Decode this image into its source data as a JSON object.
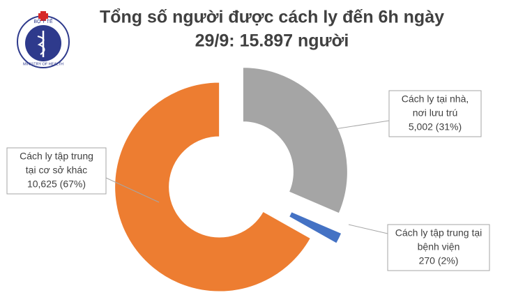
{
  "logo": {
    "top": "BỘ Y TẾ",
    "bottom": "MINISTRY OF HEALTH"
  },
  "chart_data": {
    "type": "donut",
    "title": [
      "Tổng số người được cách ly đến 6h ngày",
      "29/9: 15.897 người"
    ],
    "categories": [
      [
        "Cách ly tại nhà,",
        "nơi lưu trú"
      ],
      [
        "Cách ly tập trung tại",
        "bệnh viện"
      ],
      [
        "Cách ly tập trung",
        "tại cơ sở khác"
      ]
    ],
    "values": [
      5002,
      270,
      10625
    ],
    "value_labels": [
      "5,002 (31%)",
      "270 (2%)",
      "10,625 (67%)"
    ],
    "colors": [
      "#a5a5a5",
      "#4472c4",
      "#ed7d31"
    ]
  }
}
